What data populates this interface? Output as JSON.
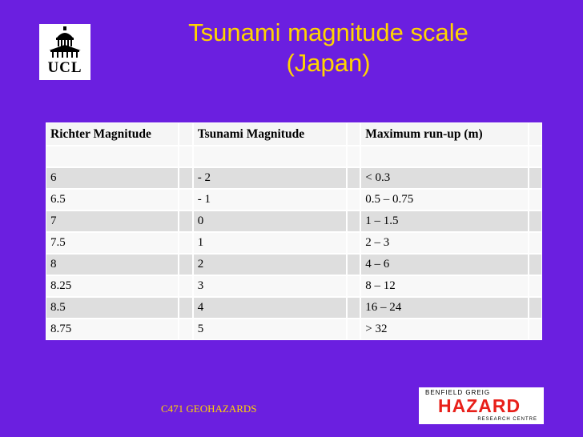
{
  "title_line1": "Tsunami magnitude scale",
  "title_line2": "(Japan)",
  "logo_ucl": "UCL",
  "table": {
    "headers": [
      "Richter Magnitude",
      "Tsunami Magnitude",
      "Maximum run-up (m)"
    ],
    "rows": [
      [
        "",
        "",
        ""
      ],
      [
        "6",
        "- 2",
        "< 0.3"
      ],
      [
        "6.5",
        "- 1",
        "0.5 – 0.75"
      ],
      [
        "7",
        "0",
        "1 – 1.5"
      ],
      [
        "7.5",
        "1",
        "2 – 3"
      ],
      [
        "8",
        "2",
        "4 – 6"
      ],
      [
        "8.25",
        "3",
        "8 – 12"
      ],
      [
        "8.5",
        "4",
        "16 – 24"
      ],
      [
        "8.75",
        "5",
        "> 32"
      ]
    ]
  },
  "footer": "C471 GEOHAZARDS",
  "logo_bghrc": {
    "line1": "BENFIELD GREIG",
    "line2": "HAZARD",
    "line3": "RESEARCH CENTRE"
  },
  "colors": {
    "background": "#6b1fe0",
    "title": "#ffd400",
    "hazard_red": "#e8201a"
  }
}
